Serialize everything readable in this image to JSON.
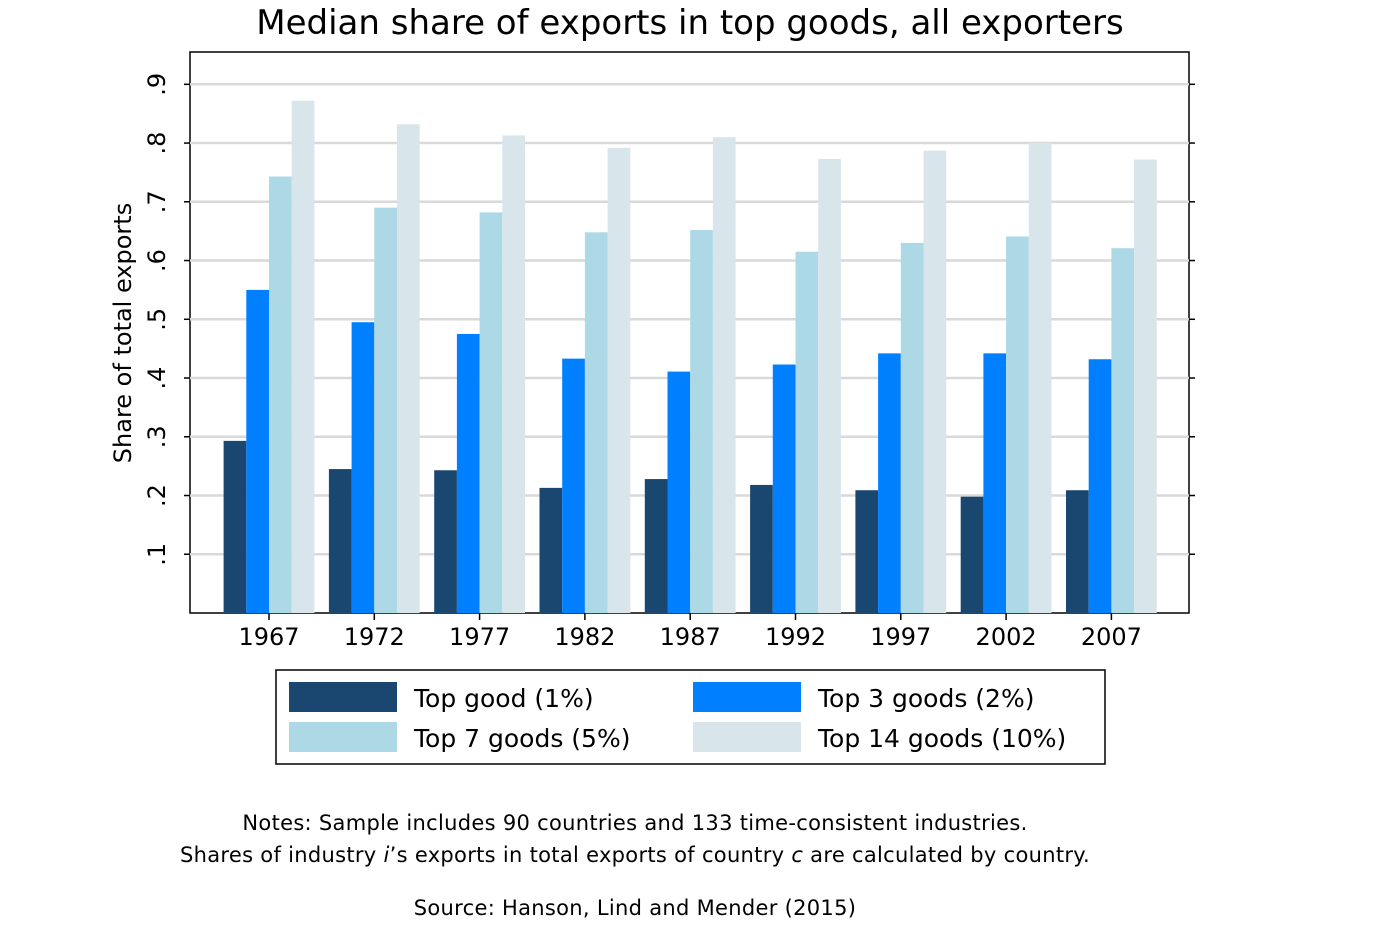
{
  "chart_data": {
    "type": "bar",
    "title": "Median share of exports in top goods, all exporters",
    "xlabel": "",
    "ylabel": "Share of total exports",
    "ylim": [
      0,
      0.955
    ],
    "yticks": [
      {
        "value": 0.1,
        "label": ".1"
      },
      {
        "value": 0.2,
        "label": ".2"
      },
      {
        "value": 0.3,
        "label": ".3"
      },
      {
        "value": 0.4,
        "label": ".4"
      },
      {
        "value": 0.5,
        "label": ".5"
      },
      {
        "value": 0.6,
        "label": ".6"
      },
      {
        "value": 0.7,
        "label": ".7"
      },
      {
        "value": 0.8,
        "label": ".8"
      },
      {
        "value": 0.9,
        "label": ".9"
      }
    ],
    "grid": true,
    "legend_position": "bottom",
    "categories": [
      "1967",
      "1972",
      "1977",
      "1982",
      "1987",
      "1992",
      "1997",
      "2002",
      "2007"
    ],
    "series": [
      {
        "name": "Top good (1%)",
        "color": "#1a476f",
        "values": [
          0.293,
          0.245,
          0.243,
          0.213,
          0.228,
          0.218,
          0.209,
          0.198,
          0.209
        ]
      },
      {
        "name": "Top 3 goods (2%)",
        "color": "#0080ff",
        "values": [
          0.55,
          0.495,
          0.475,
          0.433,
          0.411,
          0.423,
          0.442,
          0.442,
          0.432
        ]
      },
      {
        "name": "Top 7 goods (5%)",
        "color": "#add8e6",
        "values": [
          0.743,
          0.69,
          0.682,
          0.648,
          0.652,
          0.615,
          0.63,
          0.641,
          0.621
        ]
      },
      {
        "name": "Top 14 goods (10%)",
        "color": "#d8e5eb",
        "values": [
          0.872,
          0.832,
          0.813,
          0.792,
          0.81,
          0.773,
          0.787,
          0.8,
          0.772
        ]
      }
    ]
  },
  "notes": {
    "line1": "Notes: Sample includes 90 countries and 133 time-consistent industries.",
    "line2_part1": "Shares of industry ",
    "line2_i": "i",
    "line2_part2": "’s exports in total exports of country ",
    "line2_c": "c",
    "line2_part3": " are calculated by country.",
    "source": "Source: Hanson, Lind and Mender (2015)"
  }
}
